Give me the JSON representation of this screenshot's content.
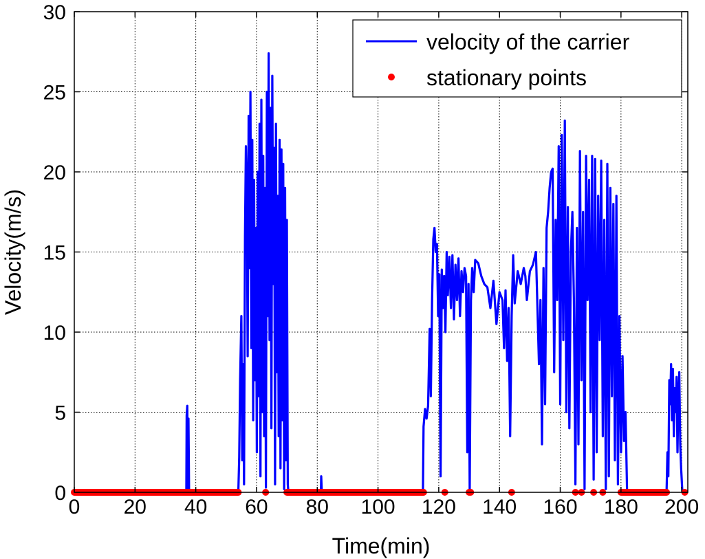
{
  "chart_data": {
    "type": "line",
    "xlabel": "Time(min)",
    "ylabel": "Velocity(m/s)",
    "xlim": [
      0,
      202
    ],
    "ylim": [
      0,
      30
    ],
    "xticks": [
      0,
      20,
      40,
      60,
      80,
      100,
      120,
      140,
      160,
      180,
      200
    ],
    "yticks": [
      0,
      5,
      10,
      15,
      20,
      25,
      30
    ],
    "grid": true,
    "legend_position": "top-right",
    "legend": [
      "velocity of the carrier",
      "stationary points"
    ],
    "series": [
      {
        "name": "velocity of the carrier",
        "kind": "line",
        "color": "#0000ff",
        "x": [
          0,
          36.9,
          37.0,
          37.2,
          37.4,
          37.6,
          37.8,
          54.0,
          54.3,
          54.6,
          55.0,
          55.3,
          55.6,
          55.9,
          56.2,
          56.5,
          56.8,
          57.1,
          57.4,
          57.7,
          58.0,
          58.3,
          58.6,
          58.9,
          59.2,
          59.5,
          59.8,
          60.1,
          60.4,
          60.7,
          61.0,
          61.3,
          61.6,
          61.9,
          62.2,
          62.5,
          62.8,
          63.1,
          63.4,
          63.7,
          64.0,
          64.3,
          64.6,
          64.9,
          65.2,
          65.5,
          65.8,
          66.1,
          66.4,
          66.7,
          67.0,
          67.3,
          67.6,
          67.9,
          68.2,
          68.5,
          68.8,
          69.1,
          69.4,
          69.7,
          70.0,
          70.3,
          70.5,
          81.2,
          81.3,
          81.5,
          114.8,
          115.0,
          115.5,
          116.0,
          116.5,
          117.0,
          117.4,
          117.8,
          118.2,
          118.6,
          119.0,
          119.4,
          119.8,
          120.2,
          120.6,
          121.0,
          121.4,
          121.8,
          122.2,
          122.6,
          123.0,
          123.5,
          124.0,
          124.5,
          125.0,
          125.5,
          126.0,
          126.5,
          127.0,
          127.5,
          128.0,
          128.5,
          129.0,
          129.4,
          129.8,
          130.2,
          130.6,
          131.0,
          131.5,
          132.0,
          133.0,
          134.0,
          135.0,
          136.0,
          137.0,
          138.0,
          139.0,
          140.0,
          141.0,
          141.5,
          142.0,
          142.5,
          143.0,
          143.5,
          144.0,
          144.5,
          145.0,
          146.0,
          147.0,
          148.0,
          148.5,
          149.0,
          150.0,
          151.0,
          152.0,
          153.0,
          153.5,
          154.0,
          154.5,
          155.0,
          155.5,
          156.0,
          156.5,
          157.0,
          157.5,
          158.0,
          158.5,
          159.0,
          159.5,
          160.0,
          160.5,
          161.0,
          161.5,
          162.0,
          162.5,
          163.0,
          163.5,
          164.0,
          164.5,
          165.0,
          165.5,
          166.0,
          166.5,
          167.0,
          167.5,
          168.0,
          168.5,
          169.0,
          169.5,
          170.0,
          170.5,
          171.0,
          171.5,
          172.0,
          172.5,
          173.0,
          173.5,
          174.0,
          174.5,
          175.0,
          175.5,
          176.0,
          176.5,
          177.0,
          177.5,
          178.0,
          178.5,
          179.0,
          179.5,
          180.0,
          180.5,
          181.0,
          181.5,
          182.0,
          194.8,
          195.0,
          195.3,
          195.6,
          195.9,
          196.2,
          196.5,
          196.8,
          197.1,
          197.4,
          197.7,
          198.0,
          198.3,
          198.6,
          198.9,
          199.2,
          199.5,
          199.8,
          200.2,
          202.0
        ],
        "y": [
          0,
          0,
          4.8,
          5.4,
          0,
          4.6,
          0,
          0,
          2.2,
          7.0,
          11.0,
          2.0,
          8.0,
          0.5,
          16.0,
          21.6,
          19.0,
          8.5,
          23.5,
          14.0,
          25.0,
          9.0,
          22.0,
          4.5,
          19.5,
          7.0,
          16.5,
          2.5,
          20.0,
          6.0,
          23.0,
          1.0,
          24.5,
          5.0,
          21.0,
          3.5,
          19.0,
          0.3,
          25.0,
          11.0,
          27.4,
          9.5,
          24.0,
          4.0,
          26.0,
          13.0,
          21.5,
          0.5,
          23.0,
          7.5,
          18.5,
          3.5,
          22.0,
          1.5,
          21.4,
          4.5,
          20.5,
          0.2,
          19.0,
          2.0,
          17.0,
          0.5,
          0,
          0,
          1.0,
          0,
          0,
          4.1,
          5.2,
          4.6,
          5.4,
          10.2,
          6.0,
          12.0,
          15.8,
          16.5,
          15.0,
          15.5,
          11.0,
          13.6,
          1.0,
          13.9,
          11.5,
          13.5,
          10.0,
          15.0,
          12.3,
          14.7,
          11.5,
          14.8,
          10.8,
          14.2,
          12.0,
          14.6,
          11.0,
          13.8,
          12.5,
          14.0,
          13.5,
          2.5,
          13.0,
          0.1,
          12.0,
          14.0,
          12.5,
          14.5,
          14.3,
          13.5,
          13.0,
          12.8,
          11.5,
          13.2,
          10.5,
          12.5,
          12.0,
          9.0,
          12.6,
          8.2,
          11.5,
          3.5,
          11.0,
          14.8,
          11.8,
          13.8,
          13.0,
          14.0,
          13.5,
          12.0,
          13.8,
          14.2,
          15.0,
          8.0,
          12.0,
          3.0,
          14.0,
          5.5,
          16.5,
          17.5,
          19.0,
          20.0,
          20.2,
          7.5,
          17.0,
          12.0,
          21.6,
          5.5,
          22.3,
          9.5,
          23.2,
          5.0,
          17.8,
          4.0,
          15.0,
          17.5,
          12.0,
          0.5,
          16.5,
          3.0,
          21.3,
          7.0,
          17.5,
          0.2,
          21.0,
          12.0,
          19.5,
          5.0,
          21.0,
          0.8,
          20.8,
          2.5,
          18.5,
          9.5,
          20.7,
          3.5,
          17.0,
          0.2,
          20.5,
          1.0,
          19.0,
          6.0,
          18.0,
          2.0,
          18.5,
          0.5,
          11.0,
          2.5,
          8.5,
          3.2,
          5.0,
          0,
          0,
          0,
          2.5,
          1.0,
          7.0,
          5.5,
          8.0,
          4.5,
          7.7,
          3.5,
          6.5,
          5.0,
          7.2,
          2.5,
          6.0,
          7.5,
          3.0,
          1.5,
          0,
          0
        ]
      },
      {
        "name": "stationary points",
        "kind": "scatter",
        "color": "#ff0000",
        "segments": [
          [
            0,
            54
          ],
          [
            70,
            115
          ],
          [
            180,
            195
          ]
        ],
        "x": [
          63.0,
          122.0,
          130.0,
          130.5,
          144.0,
          165.0,
          167.0,
          171.0,
          174.0,
          201.0
        ],
        "y": [
          0,
          0,
          0,
          0,
          0,
          0,
          0,
          0,
          0,
          0
        ]
      }
    ]
  }
}
